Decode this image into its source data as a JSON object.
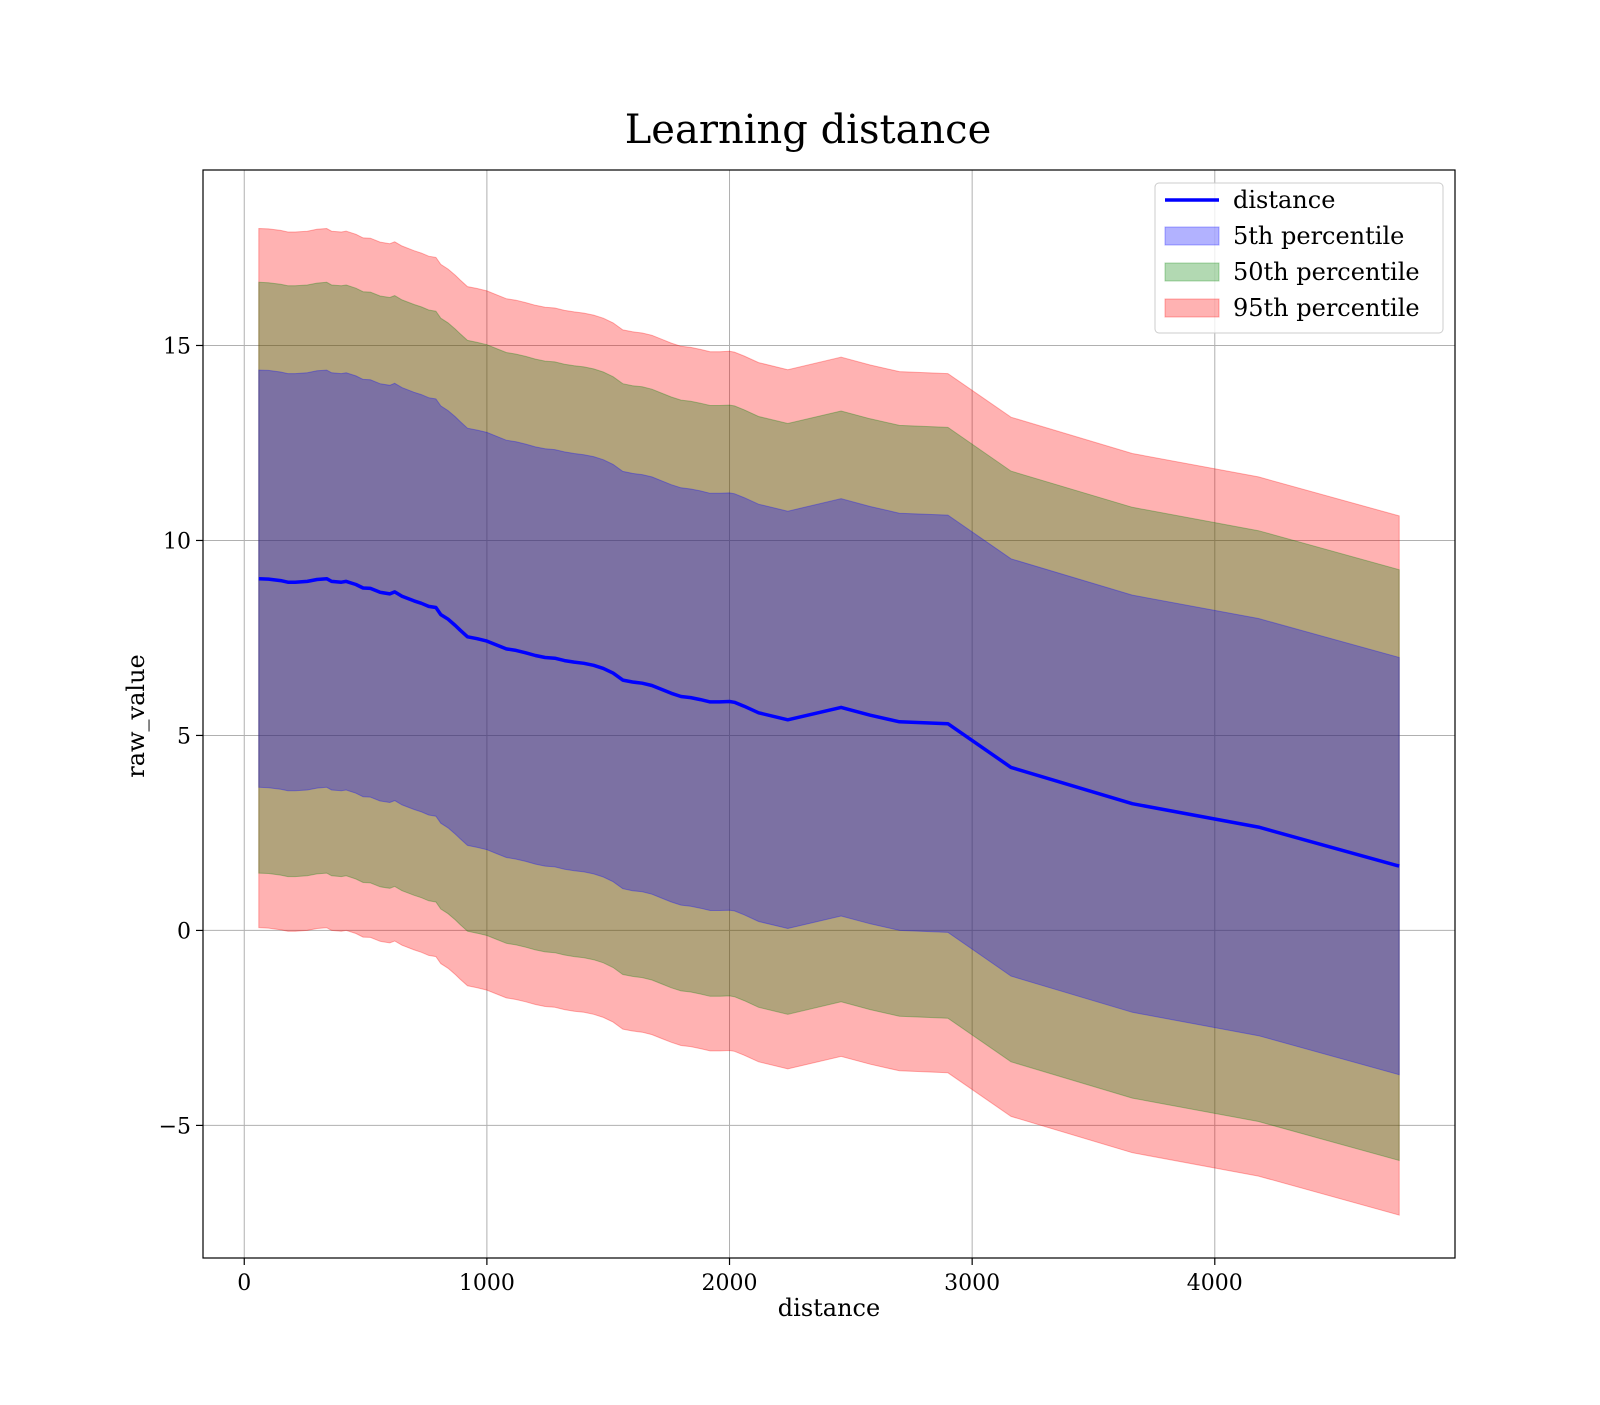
{
  "chart_data": {
    "type": "area",
    "title": "Learning distance",
    "xlabel": "distance",
    "ylabel": "raw_value",
    "xlim": [
      -170,
      4990
    ],
    "ylim": [
      -8.4,
      19.5
    ],
    "xticks": [
      0,
      1000,
      2000,
      3000,
      4000
    ],
    "yticks": [
      -5,
      0,
      5,
      10,
      15
    ],
    "ytick_labels": [
      "−5",
      "0",
      "5",
      "10",
      "15"
    ],
    "grid": true,
    "legend_position": "upper right",
    "x": [
      60,
      100,
      150,
      180,
      210,
      260,
      300,
      340,
      360,
      400,
      420,
      460,
      490,
      520,
      560,
      600,
      620,
      650,
      700,
      730,
      760,
      790,
      810,
      840,
      870,
      890,
      920,
      960,
      1000,
      1040,
      1080,
      1120,
      1160,
      1200,
      1240,
      1280,
      1320,
      1360,
      1400,
      1440,
      1480,
      1520,
      1560,
      1600,
      1640,
      1680,
      1720,
      1760,
      1800,
      1840,
      1880,
      1920,
      1960,
      2000,
      2020,
      2060,
      2120,
      2240,
      2460,
      2580,
      2700,
      2900,
      3160,
      3660,
      4180,
      4760
    ],
    "series": [
      {
        "name": "distance",
        "color": "#0000ff",
        "values": [
          9.02,
          9.01,
          8.97,
          8.93,
          8.93,
          8.95,
          9.0,
          9.02,
          8.95,
          8.93,
          8.95,
          8.87,
          8.78,
          8.77,
          8.67,
          8.63,
          8.68,
          8.57,
          8.45,
          8.39,
          8.31,
          8.28,
          8.1,
          7.98,
          7.82,
          7.7,
          7.53,
          7.48,
          7.42,
          7.32,
          7.22,
          7.18,
          7.12,
          7.05,
          7.0,
          6.98,
          6.92,
          6.88,
          6.85,
          6.8,
          6.72,
          6.6,
          6.42,
          6.37,
          6.34,
          6.28,
          6.18,
          6.08,
          6.0,
          5.97,
          5.92,
          5.86,
          5.86,
          5.87,
          5.85,
          5.75,
          5.58,
          5.4,
          5.72,
          5.52,
          5.35,
          5.3,
          4.18,
          3.25,
          2.65,
          1.65
        ]
      },
      {
        "name": "5th percentile",
        "color": "#0000ff",
        "lower_offset": -5.35,
        "upper_offset": 5.35
      },
      {
        "name": "50th percentile",
        "color": "#008000",
        "lower_offset": -7.55,
        "upper_offset": 7.6
      },
      {
        "name": "95th percentile",
        "color": "#ff0000",
        "lower_offset": -8.95,
        "upper_offset": 8.98
      }
    ]
  }
}
